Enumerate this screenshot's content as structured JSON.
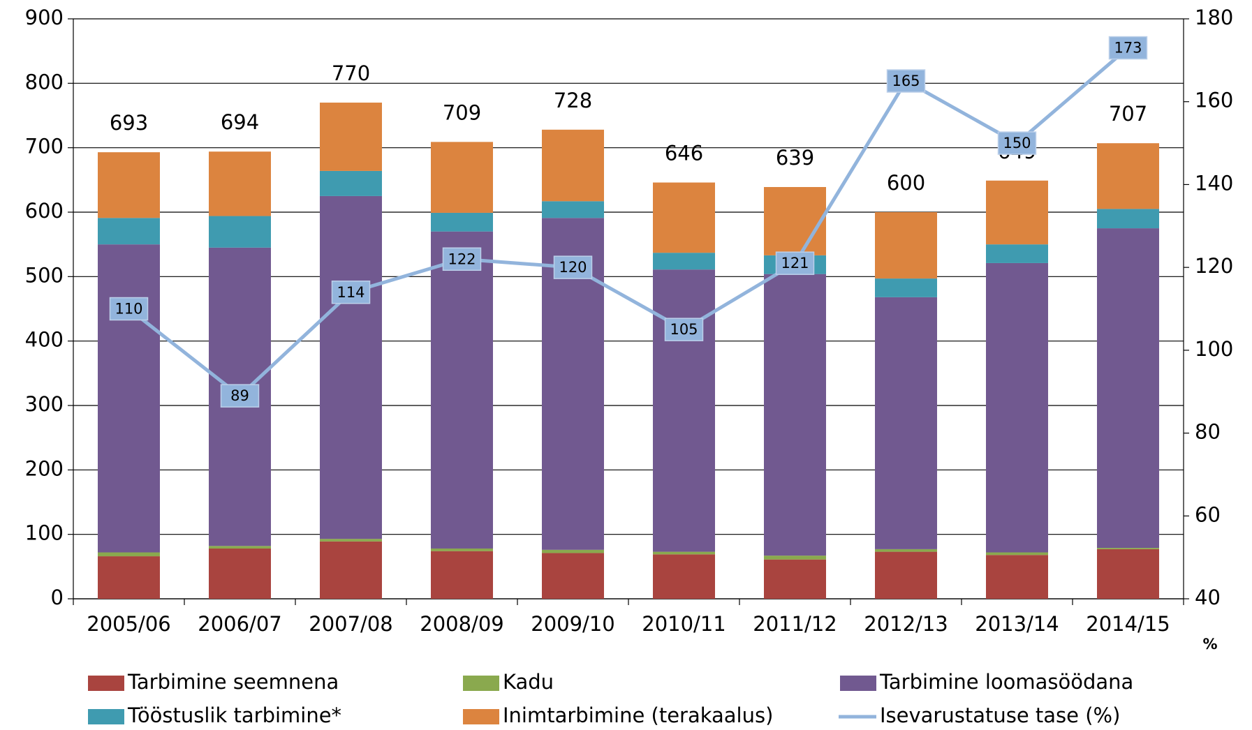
{
  "chart_data": {
    "type": "bar",
    "stacked": true,
    "categories": [
      "2005/06",
      "2006/07",
      "2007/08",
      "2008/09",
      "2009/10",
      "2010/11",
      "2011/12",
      "2012/13",
      "2013/14",
      "2014/15"
    ],
    "series": [
      {
        "name": "Tarbimine seemnena",
        "color": "#a9443f",
        "values": [
          66,
          78,
          89,
          74,
          71,
          69,
          61,
          73,
          68,
          77
        ]
      },
      {
        "name": "Kadu",
        "color": "#8aa94e",
        "values": [
          6,
          4,
          4,
          4,
          5,
          4,
          6,
          4,
          4,
          2
        ]
      },
      {
        "name": "Tarbimine loomasöödana",
        "color": "#715990",
        "values": [
          478,
          463,
          532,
          492,
          515,
          438,
          437,
          391,
          449,
          496
        ]
      },
      {
        "name": "Tööstuslik tarbimine*",
        "color": "#3f9bb0",
        "values": [
          41,
          49,
          39,
          29,
          26,
          26,
          29,
          29,
          29,
          30
        ]
      },
      {
        "name": "Inimtarbimine (terakaalus)",
        "color": "#dc843f",
        "values": [
          102,
          100,
          106,
          110,
          111,
          109,
          106,
          103,
          99,
          102
        ]
      },
      {
        "name": "Isevarustatuse tase (%)",
        "color": "#92b4dc",
        "type": "line",
        "axis": "y2",
        "values": [
          110,
          89,
          114,
          122,
          120,
          105,
          121,
          165,
          150,
          173
        ]
      }
    ],
    "totals": [
      693,
      694,
      770,
      709,
      728,
      646,
      639,
      600,
      649,
      707
    ],
    "ylim": [
      0,
      900
    ],
    "yticks": [
      0,
      100,
      200,
      300,
      400,
      500,
      600,
      700,
      800,
      900
    ],
    "y2lim": [
      40,
      180
    ],
    "y2ticks": [
      40,
      60,
      80,
      100,
      120,
      140,
      160,
      180
    ],
    "y2label": "%",
    "grid": true,
    "legend": "bottom"
  }
}
